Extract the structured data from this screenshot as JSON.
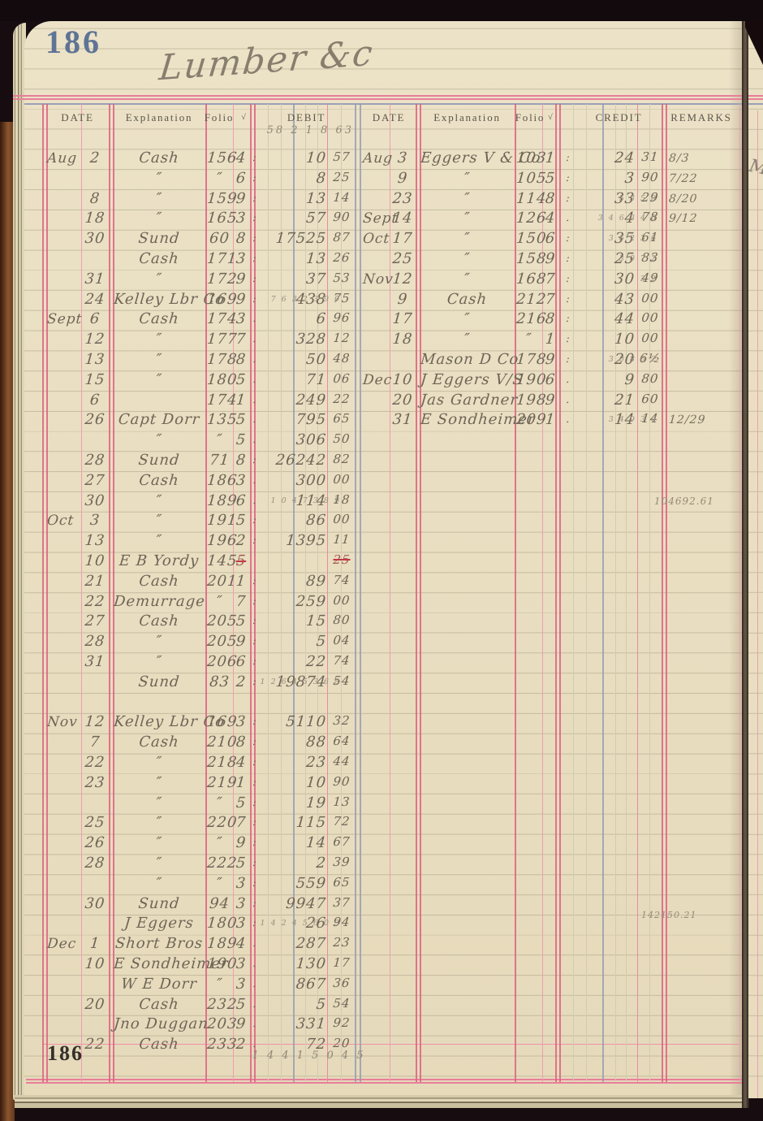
{
  "page": {
    "folio_top": "186",
    "folio_bottom": "186",
    "title": "Lumber &c"
  },
  "headers": {
    "date": "DATE",
    "explanation": "Explanation",
    "folio": "Folio",
    "check": "√",
    "debit": "DEBIT",
    "credit": "CREDIT",
    "remarks": "REMARKS"
  },
  "debit": {
    "carry_forward_pencil": "58 2 1 8 63",
    "total_pencil": "1 4 4 1 5 0 4 5",
    "rows": [
      {
        "l": 0,
        "m": "Aug",
        "d": "2",
        "e": "Cash",
        "f": "156",
        "s": "4",
        "c": ":",
        "da": "10",
        "ce": "57"
      },
      {
        "l": 1,
        "e": "″",
        "f": "″",
        "s": "6",
        "c": ":",
        "da": "8",
        "ce": "25"
      },
      {
        "l": 2,
        "d": "8",
        "e": "″",
        "f": "159",
        "s": "9",
        "c": ":",
        "da": "13",
        "ce": "14"
      },
      {
        "l": 3,
        "d": "18",
        "e": "″",
        "f": "165",
        "s": "3",
        "c": ":",
        "da": "57",
        "ce": "90"
      },
      {
        "l": 4,
        "d": "30",
        "e": "Sund",
        "f": "60",
        "s": "8",
        "c": ":",
        "da": "17525",
        "ce": "87"
      },
      {
        "l": 5,
        "e": "Cash",
        "f": "171",
        "s": "3",
        "c": ":",
        "da": "13",
        "ce": "26"
      },
      {
        "l": 6,
        "d": "31",
        "e": "″",
        "f": "172",
        "s": "9",
        "c": ":",
        "da": "37",
        "ce": "53"
      },
      {
        "l": 7,
        "d": "24",
        "e": "Kelley Lbr Co",
        "f": "169",
        "s": "9",
        "c": ":",
        "da": "438",
        "ce": "75",
        "p": "7 6 3 2 3 9 0"
      },
      {
        "l": 8,
        "m": "Sept",
        "d": "6",
        "e": "Cash",
        "f": "174",
        "s": "3",
        "c": ".",
        "da": "6",
        "ce": "96"
      },
      {
        "l": 9,
        "d": "12",
        "e": "″",
        "f": "177",
        "s": "7",
        "c": ".",
        "da": "328",
        "ce": "12"
      },
      {
        "l": 10,
        "d": "13",
        "e": "″",
        "f": "178",
        "s": "8",
        "c": ".",
        "da": "50",
        "ce": "48"
      },
      {
        "l": 11,
        "d": "15",
        "e": "″",
        "f": "180",
        "s": "5",
        "c": ".",
        "da": "71",
        "ce": "06"
      },
      {
        "l": 12,
        "d": "6",
        "f": "174",
        "s": "1",
        "c": ".",
        "da": "249",
        "ce": "22"
      },
      {
        "l": 13,
        "d": "26",
        "e": "Capt Dorr",
        "f": "135",
        "s": "5",
        "c": ".",
        "da": "795",
        "ce": "65"
      },
      {
        "l": 14,
        "e": "″",
        "f": "″",
        "s": "5",
        "c": ".",
        "da": "306",
        "ce": "50"
      },
      {
        "l": 15,
        "d": "28",
        "e": "Sund",
        "f": "71",
        "s": "8",
        "c": ":",
        "da": "26242",
        "ce": "82"
      },
      {
        "l": 16,
        "d": "27",
        "e": "Cash",
        "f": "186",
        "s": "3",
        "c": ".",
        "da": "300",
        "ce": "00"
      },
      {
        "l": 17,
        "d": "30",
        "e": "″",
        "f": "189",
        "s": "6",
        "c": ".",
        "da": "114",
        "ce": "18",
        "p": "1 0 4 7 3 8 9"
      },
      {
        "l": 18,
        "m": "Oct",
        "d": "3",
        "e": "″",
        "f": "191",
        "s": "5",
        "c": ":",
        "da": "86",
        "ce": "00"
      },
      {
        "l": 19,
        "d": "13",
        "e": "″",
        "f": "196",
        "s": "2",
        "c": ":",
        "da": "1395",
        "ce": "11"
      },
      {
        "l": 20,
        "d": "10",
        "e": "E B Yordy",
        "f": "145",
        "s": "5",
        "ce": "25",
        "struck": true
      },
      {
        "l": 21,
        "d": "21",
        "e": "Cash",
        "f": "201",
        "s": "1",
        "c": ":",
        "da": "89",
        "ce": "74"
      },
      {
        "l": 22,
        "d": "22",
        "e": "Demurrage",
        "f": "″",
        "s": "7",
        "c": ":",
        "da": "259",
        "ce": "00"
      },
      {
        "l": 23,
        "d": "27",
        "e": "Cash",
        "f": "205",
        "s": "5",
        "c": ":",
        "da": "15",
        "ce": "80"
      },
      {
        "l": 24,
        "d": "28",
        "e": "″",
        "f": "205",
        "s": "9",
        "c": ":",
        "da": "5",
        "ce": "04"
      },
      {
        "l": 25,
        "d": "31",
        "e": "″",
        "f": "206",
        "s": "6",
        "c": ":",
        "da": "22",
        "ce": "74"
      },
      {
        "l": 26,
        "e": "Sund",
        "f": "83",
        "s": "2",
        "c": ":",
        "da": "19874",
        "ce": "54",
        "p": "1 2 6 4 5 3 6 8"
      },
      {
        "l": 28,
        "m": "Nov",
        "d": "12",
        "e": "Kelley Lbr Co",
        "f": "169",
        "s": "3",
        "c": ":",
        "da": "5110",
        "ce": "32"
      },
      {
        "l": 29,
        "d": "7",
        "e": "Cash",
        "f": "210",
        "s": "8",
        "c": ":",
        "da": "88",
        "ce": "64"
      },
      {
        "l": 30,
        "d": "22",
        "e": "″",
        "f": "218",
        "s": "4",
        "c": ":",
        "da": "23",
        "ce": "44"
      },
      {
        "l": 31,
        "d": "23",
        "e": "″",
        "f": "219",
        "s": "1",
        "c": ":",
        "da": "10",
        "ce": "90"
      },
      {
        "l": 32,
        "e": "″",
        "f": "″",
        "s": "5",
        "c": ":",
        "da": "19",
        "ce": "13"
      },
      {
        "l": 33,
        "d": "25",
        "e": "″",
        "f": "220",
        "s": "7",
        "c": ":",
        "da": "115",
        "ce": "72"
      },
      {
        "l": 34,
        "d": "26",
        "e": "″",
        "f": "″",
        "s": "9",
        "c": ":",
        "da": "14",
        "ce": "67"
      },
      {
        "l": 35,
        "d": "28",
        "e": "″",
        "f": "222",
        "s": "5",
        "c": ":",
        "da": "2",
        "ce": "39"
      },
      {
        "l": 36,
        "e": "″",
        "f": "″",
        "s": "3",
        "c": ":",
        "da": "559",
        "ce": "65"
      },
      {
        "l": 37,
        "d": "30",
        "e": "Sund",
        "f": "94",
        "s": "3",
        "c": ":",
        "da": "9947",
        "ce": "37"
      },
      {
        "l": 38,
        "e": "J Eggers",
        "f": "180",
        "s": "3",
        "c": ":",
        "da": "26",
        "ce": "94",
        "p": "1 4 2 4 5 6 0 3"
      },
      {
        "l": 39,
        "m": "Dec",
        "d": "1",
        "e": "Short Bros",
        "f": "189",
        "s": "4",
        "c": ".",
        "da": "287",
        "ce": "23"
      },
      {
        "l": 40,
        "d": "10",
        "e": "E Sondheimer",
        "f": "190",
        "s": "3",
        "c": ".",
        "da": "130",
        "ce": "17"
      },
      {
        "l": 41,
        "e": "W E Dorr",
        "f": "″",
        "s": "3",
        "c": ".",
        "da": "867",
        "ce": "36"
      },
      {
        "l": 42,
        "d": "20",
        "e": "Cash",
        "f": "232",
        "s": "5",
        "c": ".",
        "da": "5",
        "ce": "54"
      },
      {
        "l": 43,
        "e": "Jno Duggan",
        "f": "203",
        "s": "9",
        "c": ".",
        "da": "331",
        "ce": "92"
      },
      {
        "l": 44,
        "d": "22",
        "e": "Cash",
        "f": "233",
        "s": "2",
        "c": ".",
        "da": "72",
        "ce": "20"
      }
    ]
  },
  "credit": {
    "pencil_note_upper": "104692.61",
    "pencil_note_lower": "142150.21",
    "rows": [
      {
        "l": 0,
        "m": "Aug",
        "d": "3",
        "e": "Eggers V & Co",
        "f": "103",
        "s": "1",
        "c": ":",
        "da": "24",
        "ce": "31",
        "r": "8/3"
      },
      {
        "l": 1,
        "d": "9",
        "e": "″",
        "f": "105",
        "s": "5",
        "c": ":",
        "da": "3",
        "ce": "90",
        "r": "7/22"
      },
      {
        "l": 2,
        "d": "23",
        "e": "″",
        "f": "114",
        "s": "8",
        "c": ":",
        "da": "33",
        "ce": "29",
        "r": "8/20",
        "p": "5 3 5 0"
      },
      {
        "l": 3,
        "m": "Sept",
        "d": "14",
        "e": "″",
        "f": "126",
        "s": "4",
        "c": ".",
        "da": "4",
        "ce": "78",
        "r": "9/12",
        "p": "3 4 6 3 4 6"
      },
      {
        "l": 4,
        "m": "Oct",
        "d": "17",
        "e": "″",
        "f": "150",
        "s": "6",
        "c": ":",
        "da": "35",
        "ce": "61",
        "p": "3 6 2 3 6"
      },
      {
        "l": 5,
        "d": "25",
        "e": "″",
        "f": "158",
        "s": "9",
        "c": ":",
        "da": "25",
        "ce": "83",
        "p": "3 0 7 2"
      },
      {
        "l": 6,
        "m": "Nov",
        "d": "12",
        "e": "″",
        "f": "168",
        "s": "7",
        "c": ":",
        "da": "30",
        "ce": "49",
        "p": "3 2"
      },
      {
        "l": 7,
        "d": "9",
        "e": "Cash",
        "f": "212",
        "s": "7",
        "c": ":",
        "da": "43",
        "ce": "00"
      },
      {
        "l": 8,
        "d": "17",
        "e": "″",
        "f": "216",
        "s": "8",
        "c": ":",
        "da": "44",
        "ce": "00"
      },
      {
        "l": 9,
        "d": "18",
        "e": "″",
        "f": "″",
        "s": "1",
        "c": ":",
        "da": "10",
        "ce": "00"
      },
      {
        "l": 10,
        "e": "Mason D Co",
        "f": "178",
        "s": "9",
        "c": ":",
        "da": "20",
        "ce": "6½",
        "p": "3 0 8 6 2"
      },
      {
        "l": 11,
        "m": "Dec",
        "d": "10",
        "e": "J Eggers V/S",
        "f": "190",
        "s": "6",
        "c": ".",
        "da": "9",
        "ce": "80"
      },
      {
        "l": 12,
        "d": "20",
        "e": "Jas Gardner",
        "f": "198",
        "s": "9",
        "c": ".",
        "da": "21",
        "ce": "60"
      },
      {
        "l": 13,
        "d": "31",
        "e": "E Sondheimer",
        "f": "209",
        "s": "1",
        "c": ".",
        "da": "14",
        "ce": "14",
        "r": "12/29",
        "p": "3 4 9 3 6"
      }
    ]
  },
  "next_page_sliver": {
    "partial_text": "M"
  },
  "colors": {
    "paper": "#eadfc1",
    "rule_red": "#dd6181",
    "rule_pink": "#ef9db1",
    "rule_blue": "#939ab1",
    "ink": "#6e6557",
    "pencil": "#98907f",
    "strike_red": "#c23a46",
    "folio_blue": "#5e7496"
  }
}
